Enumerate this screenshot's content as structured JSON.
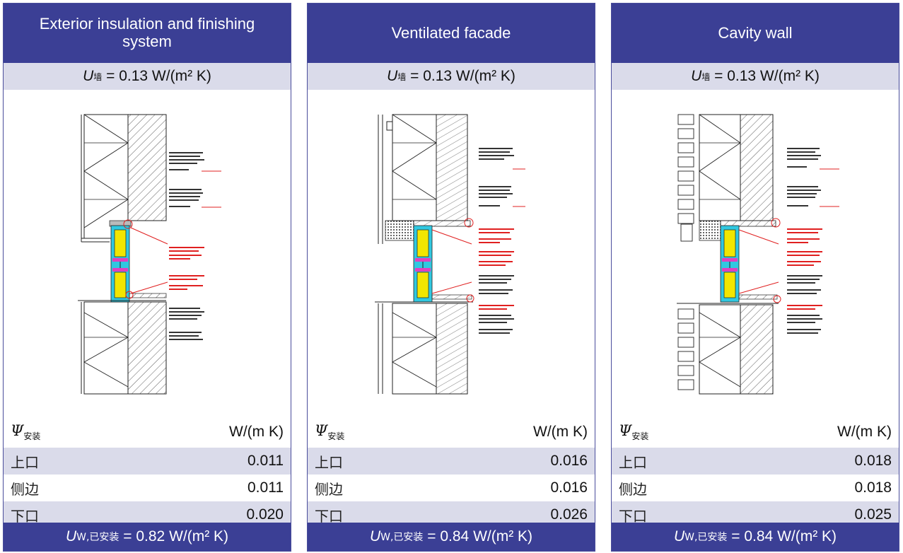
{
  "panels": [
    {
      "title": "Exterior insulation and finishing system",
      "u_wall": {
        "symbol": "U",
        "sub": "墙",
        "value": "= 0.13 W/(m² K)"
      },
      "psi_symbol": "Ψ",
      "psi_sub": "安装",
      "psi_unit": "W/(m K)",
      "rows": [
        {
          "label": "上口",
          "value": "0.011"
        },
        {
          "label": "侧边",
          "value": "0.011"
        },
        {
          "label": "下口",
          "value": "0.020"
        }
      ],
      "u_window": {
        "symbol": "U",
        "sub": "W,已安装",
        "value": "= 0.82 W/(m² K)"
      }
    },
    {
      "title": "Ventilated facade",
      "u_wall": {
        "symbol": "U",
        "sub": "墙",
        "value": "= 0.13 W/(m² K)"
      },
      "psi_symbol": "Ψ",
      "psi_sub": "安装",
      "psi_unit": "W/(m K)",
      "rows": [
        {
          "label": "上口",
          "value": "0.016"
        },
        {
          "label": "侧边",
          "value": "0.016"
        },
        {
          "label": "下口",
          "value": "0.026"
        }
      ],
      "u_window": {
        "symbol": "U",
        "sub": "W,已安装",
        "value": "= 0.84 W/(m² K)"
      }
    },
    {
      "title": "Cavity wall",
      "u_wall": {
        "symbol": "U",
        "sub": "墙",
        "value": "= 0.13 W/(m² K)"
      },
      "psi_symbol": "Ψ",
      "psi_sub": "安装",
      "psi_unit": "W/(m K)",
      "rows": [
        {
          "label": "上口",
          "value": "0.018"
        },
        {
          "label": "侧边",
          "value": "0.018"
        },
        {
          "label": "下口",
          "value": "0.025"
        }
      ],
      "u_window": {
        "symbol": "U",
        "sub": "W,已安装",
        "value": "= 0.84 W/(m² K)"
      }
    }
  ],
  "colors": {
    "header_bg": "#3b3f95",
    "band_bg": "#dadbea",
    "annotation_red": "#e02020",
    "frame_yellow": "#f2e600",
    "seal_magenta": "#e040c0",
    "profile_cyan": "#30c8e0"
  }
}
